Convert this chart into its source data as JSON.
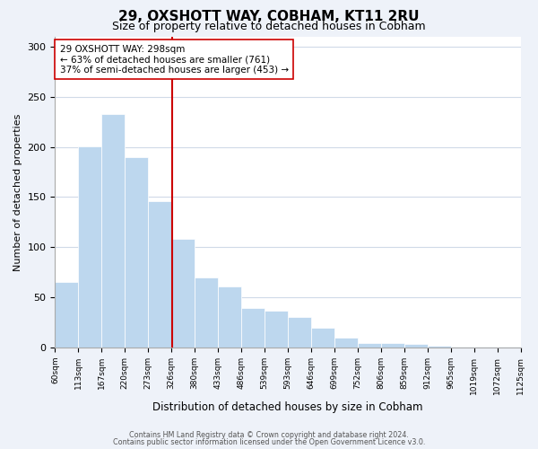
{
  "title": "29, OXSHOTT WAY, COBHAM, KT11 2RU",
  "subtitle": "Size of property relative to detached houses in Cobham",
  "xlabel": "Distribution of detached houses by size in Cobham",
  "ylabel": "Number of detached properties",
  "bins": [
    "60sqm",
    "113sqm",
    "167sqm",
    "220sqm",
    "273sqm",
    "326sqm",
    "380sqm",
    "433sqm",
    "486sqm",
    "539sqm",
    "593sqm",
    "646sqm",
    "699sqm",
    "752sqm",
    "806sqm",
    "859sqm",
    "912sqm",
    "965sqm",
    "1019sqm",
    "1072sqm",
    "1125sqm"
  ],
  "values": [
    65,
    201,
    233,
    190,
    146,
    108,
    70,
    61,
    39,
    37,
    30,
    20,
    10,
    4,
    4,
    3,
    2,
    1,
    1,
    1
  ],
  "bar_color": "#bdd7ee",
  "vline_x_index": 4.53,
  "vline_color": "#cc0000",
  "annotation_text": "29 OXSHOTT WAY: 298sqm\n← 63% of detached houses are smaller (761)\n37% of semi-detached houses are larger (453) →",
  "annotation_box_edge_color": "#cc0000",
  "annotation_box_face_color": "#ffffff",
  "ylim": [
    0,
    310
  ],
  "yticks": [
    0,
    50,
    100,
    150,
    200,
    250,
    300
  ],
  "footer1": "Contains HM Land Registry data © Crown copyright and database right 2024.",
  "footer2": "Contains public sector information licensed under the Open Government Licence v3.0.",
  "background_color": "#eef2f9",
  "plot_background_color": "#ffffff",
  "grid_color": "#d0dae8"
}
